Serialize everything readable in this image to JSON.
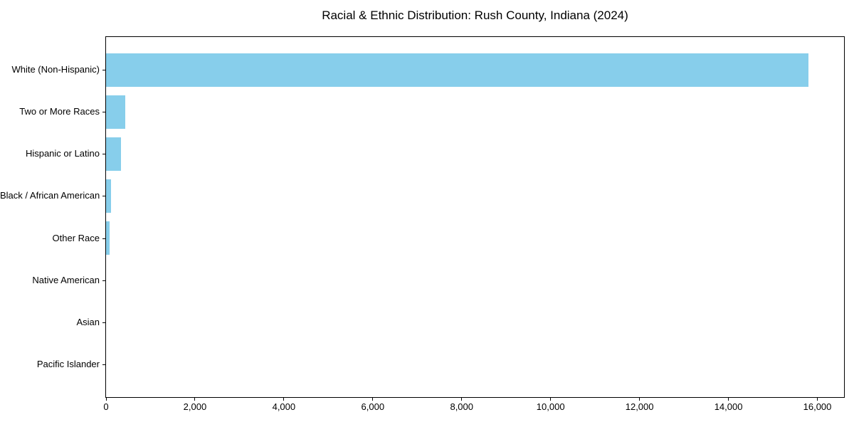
{
  "chart_data": {
    "type": "bar",
    "orientation": "horizontal",
    "title": "Racial & Ethnic Distribution: Rush County, Indiana (2024)",
    "categories": [
      "White (Non-Hispanic)",
      "Two or More Races",
      "Hispanic or Latino",
      "Black / African American",
      "Other Race",
      "Native American",
      "Asian",
      "Pacific Islander"
    ],
    "values": [
      15800,
      440,
      340,
      120,
      75,
      0,
      0,
      0
    ],
    "bar_color": "#87CEEB",
    "axis_color": "#000000",
    "text_color": "#000000",
    "background_color": "#ffffff",
    "xlabel": "",
    "ylabel": "",
    "xlim": [
      0,
      16600
    ],
    "xticks": [
      0,
      2000,
      4000,
      6000,
      8000,
      10000,
      12000,
      14000,
      16000
    ],
    "xtick_labels": [
      "0",
      "2,000",
      "4,000",
      "6,000",
      "8,000",
      "10,000",
      "12,000",
      "14,000",
      "16,000"
    ],
    "grid": false,
    "legend": null
  }
}
